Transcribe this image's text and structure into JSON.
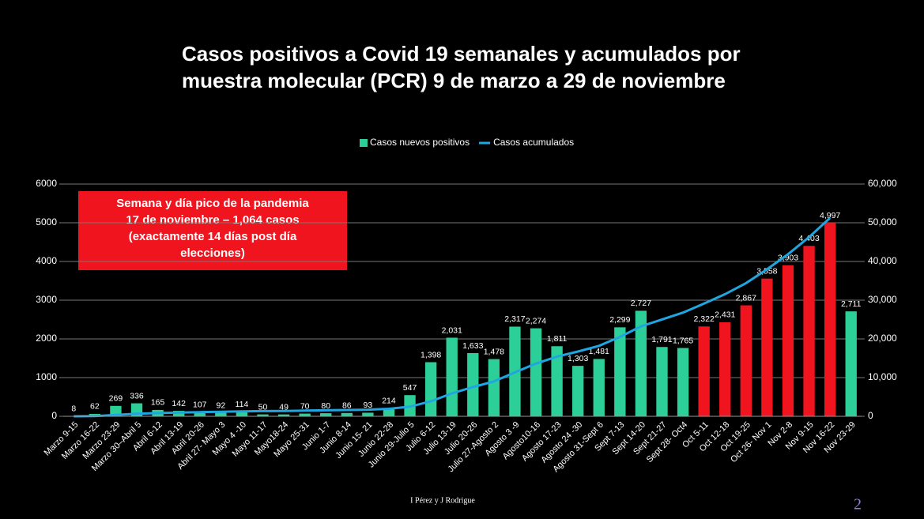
{
  "chart_data": {
    "type": "bar",
    "title": [
      "Casos positivos a Covid 19 semanales y acumulados por",
      "muestra molecular (PCR) 9 de marzo a 29 de noviembre"
    ],
    "annotation": [
      "Semana y día  pico de la pandemia",
      "17 de noviembre – 1,064 casos",
      "(exactamente 14 días post día",
      "elecciones)"
    ],
    "footer": "I Pérez y J Rodrigue",
    "page_number": "2",
    "legend": "top",
    "grid": true,
    "categories": [
      "Marzo 9-15",
      "Marzo 16-22",
      "Marzo 23-29",
      "Marzo 30–Abril 5",
      "Abril 6-12",
      "Abril 13-19",
      "Abril 20-26",
      "Abril 27- Mayo 3",
      "Mayo 4 -10",
      "Mayo 11-17",
      "Mayo18-24",
      "Mayo 25-31",
      "Junio 1-7",
      "Junio 8-14",
      "Junio 15- 21",
      "Junio 22-28",
      "Junio 29-Julio 5",
      "Julio 6-12",
      "Julio 13-19",
      "Julio 20-26",
      "Julio 27-Agosto 2",
      "Agosto 3 -9",
      "Agosto10-16",
      "Agosto 17-23",
      "Agosto 24 -30",
      "Agosto 31-Sept 6",
      "Sept 7-13",
      "Sept 14-20",
      "Sept 21-27",
      "Sept 28- Oct4",
      "Oct 5-11",
      "Oct 12-18",
      "Oct 19-25",
      "Oct 26- Nov 1",
      "Nov 2-8",
      "Nov 9-15",
      "Nov 16-22",
      "Nov 23-29"
    ],
    "series": [
      {
        "name": "Casos nuevos positivos",
        "type": "bar",
        "color": "#2ccf98",
        "colors": [
          "#2ccf98",
          "#2ccf98",
          "#2ccf98",
          "#2ccf98",
          "#2ccf98",
          "#2ccf98",
          "#2ccf98",
          "#2ccf98",
          "#2ccf98",
          "#2ccf98",
          "#2ccf98",
          "#2ccf98",
          "#2ccf98",
          "#2ccf98",
          "#2ccf98",
          "#2ccf98",
          "#2ccf98",
          "#2ccf98",
          "#2ccf98",
          "#2ccf98",
          "#2ccf98",
          "#2ccf98",
          "#2ccf98",
          "#2ccf98",
          "#2ccf98",
          "#2ccf98",
          "#2ccf98",
          "#2ccf98",
          "#2ccf98",
          "#2ccf98",
          "#f0141e",
          "#f0141e",
          "#f0141e",
          "#f0141e",
          "#f0141e",
          "#f0141e",
          "#f0141e",
          "#2ccf98"
        ],
        "values": [
          8,
          62,
          269,
          336,
          165,
          142,
          107,
          92,
          114,
          50,
          49,
          70,
          80,
          86,
          93,
          214,
          547,
          1398,
          2031,
          1633,
          1478,
          2317,
          2274,
          1811,
          1303,
          1481,
          2299,
          2727,
          1791,
          1765,
          2322,
          2431,
          2867,
          3558,
          3903,
          4403,
          4997,
          2711
        ],
        "value_labels": [
          "8",
          "62",
          "269",
          "336",
          "165",
          "142",
          "107",
          "92",
          "114",
          "50",
          "49",
          "70",
          "80",
          "86",
          "93",
          "214",
          "547",
          "1,398",
          "2,031",
          "1,633",
          "1,478",
          "2,317",
          "2,274",
          "1,811",
          "1,303",
          "1,481",
          "2,299",
          "2,727",
          "1,791",
          "1,765",
          "2,322",
          "2,431",
          "2,867",
          "3,558",
          "3,903",
          "4,403",
          "4,997",
          "2,711"
        ]
      },
      {
        "name": "Casos acumulados",
        "type": "line",
        "color": "#1fa6e0",
        "axis": "y2",
        "values": [
          8,
          70,
          339,
          675,
          840,
          982,
          1089,
          1181,
          1295,
          1345,
          1394,
          1464,
          1544,
          1630,
          1723,
          1937,
          2484,
          3882,
          5913,
          7546,
          9024,
          11341,
          13615,
          15426,
          16729,
          18210,
          20509,
          23236,
          25027,
          26792,
          29114,
          31545,
          34412,
          37970,
          41873,
          46276,
          51273,
          null
        ]
      }
    ],
    "ylim": [
      0,
      6000
    ],
    "yticks": [
      0,
      1000,
      2000,
      3000,
      4000,
      5000,
      6000
    ],
    "y2lim": [
      0,
      60000
    ],
    "y2ticks": [
      0,
      {
        "value": 10000,
        "label": "10,000"
      },
      {
        "value": 20000,
        "label": "20,000"
      },
      {
        "value": 30000,
        "label": "30,000"
      },
      {
        "value": 40000,
        "label": "40,000"
      },
      {
        "value": 50000,
        "label": "50,000"
      },
      {
        "value": 60000,
        "label": "60,000"
      }
    ]
  }
}
